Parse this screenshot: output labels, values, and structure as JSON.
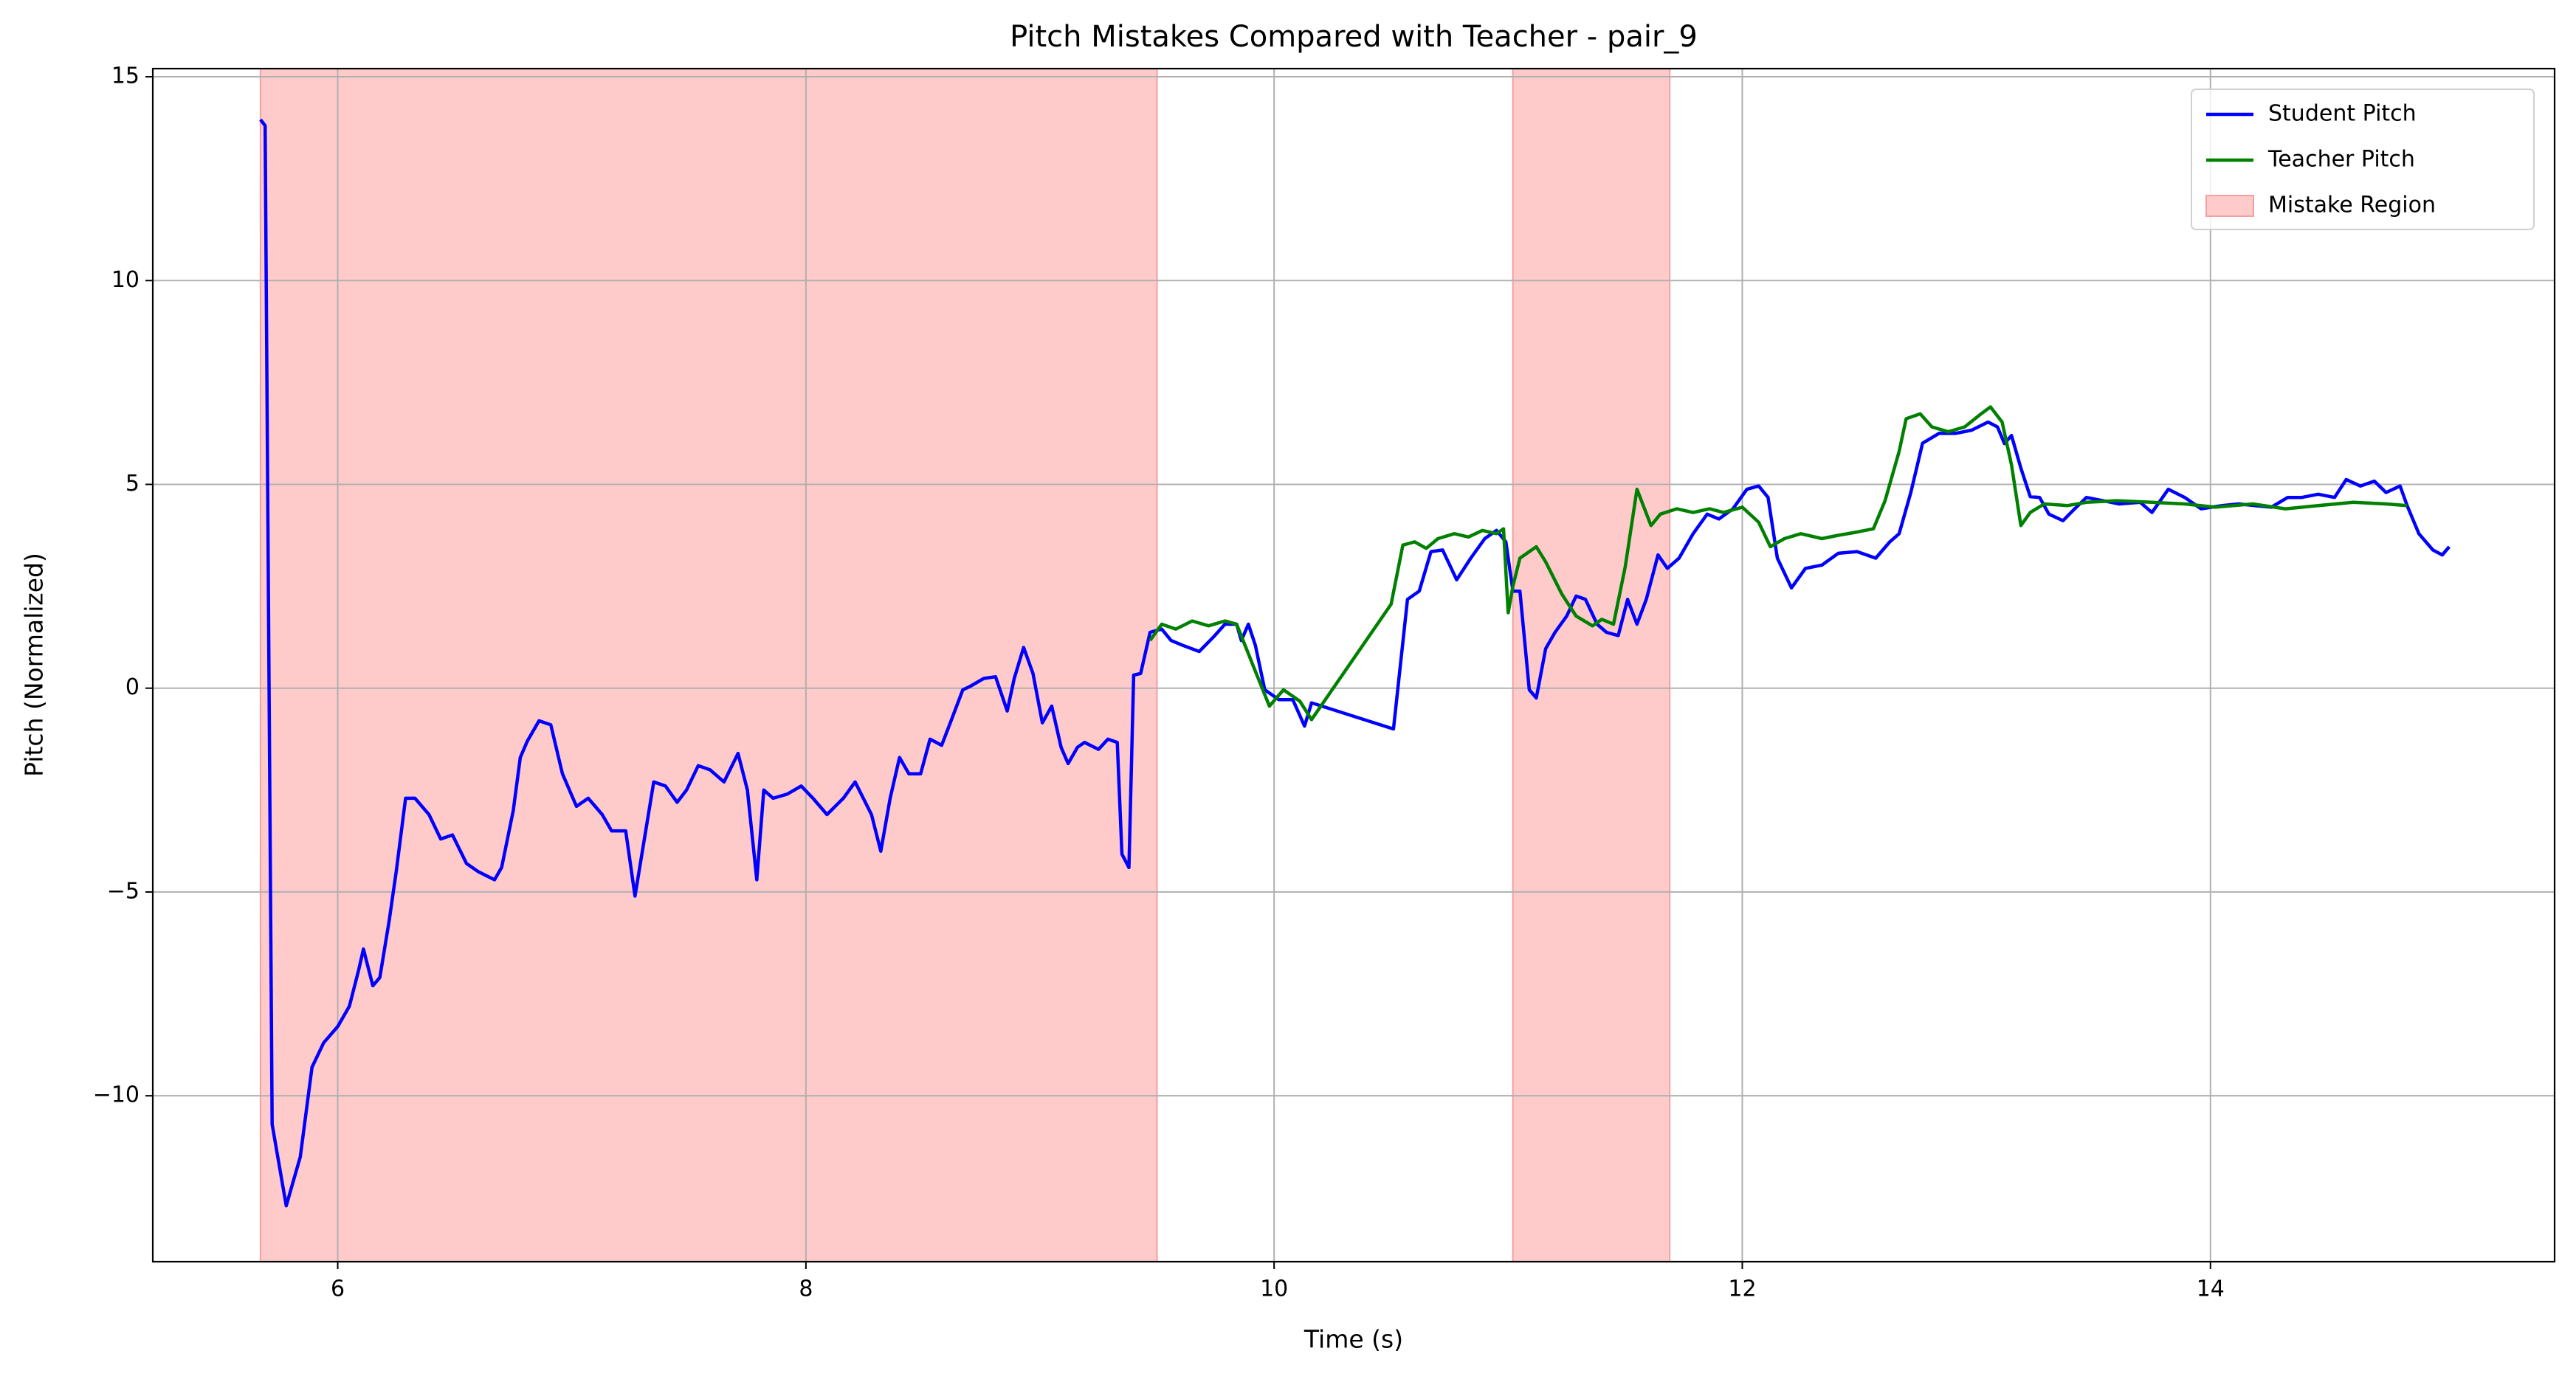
{
  "chart_data": {
    "type": "line",
    "title": "Pitch Mistakes Compared with Teacher - pair_9",
    "xlabel": "Time (s)",
    "ylabel": "Pitch (Normalized)",
    "xlim": [
      5.21,
      15.47
    ],
    "ylim": [
      -14.07,
      15.2
    ],
    "xticks": [
      6,
      8,
      10,
      12,
      14
    ],
    "yticks": [
      {
        "value": -10,
        "label": "−10"
      },
      {
        "value": -5,
        "label": "−5"
      },
      0,
      5,
      10,
      15
    ],
    "grid": true,
    "legend": "upper right",
    "series": [
      {
        "name": "Student Pitch",
        "color": "#0000ff",
        "x": [
          5.67,
          5.69,
          5.72,
          5.78,
          5.84,
          5.89,
          5.94,
          6.0,
          6.05,
          6.09,
          6.11,
          6.15,
          6.18,
          6.22,
          6.25,
          6.29,
          6.33,
          6.39,
          6.44,
          6.49,
          6.55,
          6.6,
          6.67,
          6.7,
          6.75,
          6.78,
          6.81,
          6.86,
          6.91,
          6.96,
          7.02,
          7.07,
          7.13,
          7.17,
          7.23,
          7.27,
          7.31,
          7.35,
          7.4,
          7.45,
          7.49,
          7.54,
          7.59,
          7.65,
          7.71,
          7.75,
          7.79,
          7.82,
          7.86,
          7.92,
          7.98,
          8.03,
          8.09,
          8.16,
          8.21,
          8.28,
          8.32,
          8.36,
          8.4,
          8.44,
          8.49,
          8.53,
          8.58,
          8.62,
          8.67,
          8.7,
          8.76,
          8.81,
          8.86,
          8.89,
          8.93,
          8.97,
          9.01,
          9.05,
          9.09,
          9.12,
          9.16,
          9.19,
          9.25,
          9.29,
          9.33,
          9.35,
          9.38,
          9.4,
          9.43,
          9.47,
          9.52,
          9.56,
          9.61,
          9.68,
          9.74,
          9.79,
          9.84,
          9.86,
          9.89,
          9.92,
          9.96,
          10.02,
          10.08,
          10.13,
          10.16,
          10.51,
          10.57,
          10.62,
          10.67,
          10.72,
          10.78,
          10.84,
          10.9,
          10.95,
          10.99,
          11.02,
          11.05,
          11.09,
          11.12,
          11.16,
          11.2,
          11.25,
          11.29,
          11.33,
          11.38,
          11.42,
          11.47,
          11.51,
          11.55,
          11.59,
          11.64,
          11.68,
          11.73,
          11.79,
          11.85,
          11.9,
          11.96,
          12.02,
          12.07,
          12.11,
          12.15,
          12.21,
          12.27,
          12.34,
          12.41,
          12.49,
          12.57,
          12.63,
          12.67,
          12.72,
          12.77,
          12.84,
          12.91,
          12.98,
          13.05,
          13.09,
          13.12,
          13.15,
          13.19,
          13.23,
          13.27,
          13.31,
          13.37,
          13.42,
          13.47,
          13.54,
          13.61,
          13.7,
          13.75,
          13.82,
          13.89,
          13.96,
          14.05,
          14.12,
          14.19,
          14.26,
          14.33,
          14.39,
          14.46,
          14.53,
          14.58,
          14.64,
          14.7,
          14.75,
          14.81,
          14.84,
          14.89,
          14.95,
          14.99,
          15.02
        ],
        "values": [
          13.95,
          13.8,
          -10.7,
          -12.7,
          -11.5,
          -9.3,
          -8.7,
          -8.3,
          -7.8,
          -6.9,
          -6.4,
          -7.3,
          -7.1,
          -5.7,
          -4.5,
          -2.7,
          -2.7,
          -3.1,
          -3.7,
          -3.6,
          -4.3,
          -4.5,
          -4.7,
          -4.4,
          -3.0,
          -1.7,
          -1.3,
          -0.8,
          -0.9,
          -2.1,
          -2.9,
          -2.7,
          -3.1,
          -3.5,
          -3.5,
          -5.1,
          -3.7,
          -2.3,
          -2.4,
          -2.8,
          -2.5,
          -1.9,
          -2.0,
          -2.3,
          -1.6,
          -2.5,
          -4.7,
          -2.5,
          -2.7,
          -2.6,
          -2.4,
          -2.7,
          -3.1,
          -2.7,
          -2.3,
          -3.1,
          -4.0,
          -2.7,
          -1.7,
          -2.1,
          -2.1,
          -1.25,
          -1.4,
          -0.8,
          -0.04,
          0.04,
          0.24,
          0.28,
          -0.56,
          0.24,
          1.0,
          0.36,
          -0.85,
          -0.44,
          -1.45,
          -1.85,
          -1.45,
          -1.33,
          -1.5,
          -1.25,
          -1.33,
          -4.07,
          -4.4,
          0.32,
          0.36,
          1.37,
          1.45,
          1.17,
          1.05,
          0.9,
          1.25,
          1.57,
          1.57,
          1.17,
          1.57,
          1.05,
          -0.04,
          -0.28,
          -0.28,
          -0.93,
          -0.36,
          -1.0,
          2.18,
          2.38,
          3.35,
          3.39,
          2.66,
          3.19,
          3.67,
          3.87,
          3.59,
          2.38,
          2.38,
          -0.04,
          -0.24,
          0.97,
          1.37,
          1.77,
          2.26,
          2.18,
          1.57,
          1.37,
          1.29,
          2.18,
          1.57,
          2.18,
          3.27,
          2.94,
          3.19,
          3.79,
          4.27,
          4.15,
          4.4,
          4.88,
          4.96,
          4.68,
          3.19,
          2.46,
          2.94,
          3.02,
          3.31,
          3.35,
          3.19,
          3.59,
          3.79,
          4.8,
          6.01,
          6.25,
          6.25,
          6.33,
          6.53,
          6.41,
          6.0,
          6.2,
          5.4,
          4.7,
          4.68,
          4.27,
          4.11,
          4.4,
          4.68,
          4.6,
          4.52,
          4.56,
          4.31,
          4.88,
          4.68,
          4.4,
          4.48,
          4.52,
          4.48,
          4.44,
          4.68,
          4.68,
          4.76,
          4.68,
          5.12,
          4.96,
          5.08,
          4.8,
          4.96,
          4.48,
          3.79,
          3.39,
          3.27,
          3.47
        ]
      },
      {
        "name": "Teacher Pitch",
        "color": "#008000",
        "x": [
          9.47,
          9.52,
          9.58,
          9.65,
          9.72,
          9.79,
          9.84,
          9.91,
          9.98,
          10.04,
          10.11,
          10.16,
          10.5,
          10.55,
          10.6,
          10.65,
          10.7,
          10.77,
          10.83,
          10.89,
          10.95,
          10.98,
          11.0,
          11.02,
          11.05,
          11.12,
          11.16,
          11.23,
          11.29,
          11.36,
          11.4,
          11.45,
          11.5,
          11.55,
          11.61,
          11.65,
          11.72,
          11.79,
          11.86,
          11.92,
          12.0,
          12.07,
          12.12,
          12.18,
          12.25,
          12.34,
          12.41,
          12.49,
          12.56,
          12.61,
          12.67,
          12.7,
          12.76,
          12.81,
          12.88,
          12.95,
          13.02,
          13.06,
          13.11,
          13.15,
          13.19,
          13.23,
          13.29,
          13.39,
          13.47,
          13.6,
          13.75,
          13.89,
          14.02,
          14.18,
          14.32,
          14.46,
          14.61,
          14.75,
          14.84
        ],
        "values": [
          1.17,
          1.57,
          1.45,
          1.65,
          1.53,
          1.65,
          1.57,
          0.56,
          -0.44,
          -0.04,
          -0.32,
          -0.77,
          2.06,
          3.51,
          3.59,
          3.43,
          3.67,
          3.79,
          3.71,
          3.87,
          3.79,
          3.91,
          1.85,
          2.5,
          3.19,
          3.47,
          3.1,
          2.3,
          1.77,
          1.53,
          1.69,
          1.57,
          2.98,
          4.88,
          3.99,
          4.27,
          4.4,
          4.31,
          4.4,
          4.31,
          4.44,
          4.07,
          3.47,
          3.67,
          3.79,
          3.67,
          3.75,
          3.83,
          3.91,
          4.6,
          5.81,
          6.61,
          6.73,
          6.41,
          6.29,
          6.41,
          6.73,
          6.9,
          6.53,
          5.48,
          3.99,
          4.31,
          4.52,
          4.48,
          4.56,
          4.6,
          4.56,
          4.52,
          4.44,
          4.52,
          4.4,
          4.48,
          4.56,
          4.52,
          4.48
        ]
      }
    ],
    "mistake_region": {
      "name": "Mistake Region",
      "color": "#ffcaca",
      "spans": [
        [
          5.67,
          9.5
        ],
        [
          11.02,
          11.69
        ]
      ]
    }
  }
}
